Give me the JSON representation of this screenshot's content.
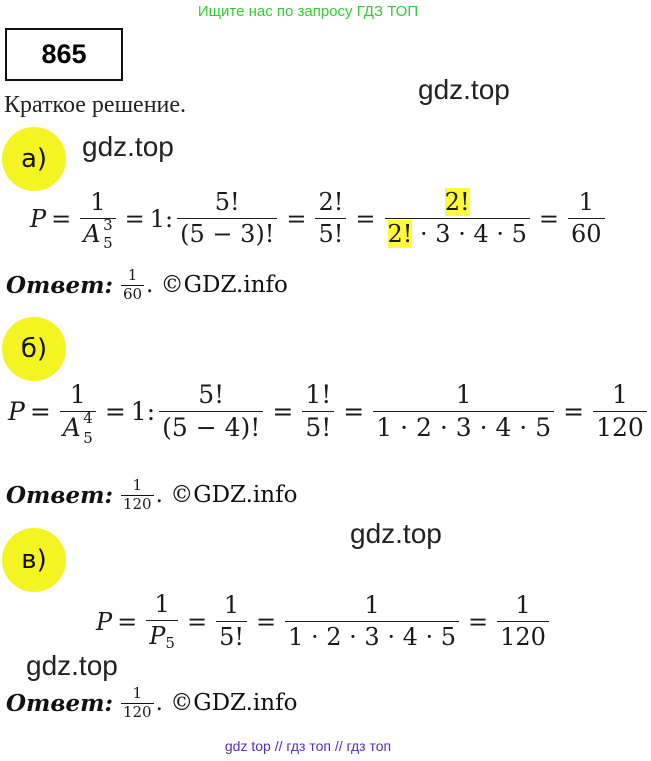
{
  "header": {
    "banner": "Ищите нас по запросу ГДЗ ТОП"
  },
  "task": {
    "number": "865"
  },
  "watermark": {
    "gdz_top": "gdz.top"
  },
  "section_title": "Краткое решение.",
  "parts": {
    "a": {
      "label": "а)",
      "P": "P",
      "eq": "=",
      "one": "1",
      "A": "A",
      "A_sup": "3",
      "A_sub": "5",
      "ratio_prefix": "1:",
      "f1_num": "5!",
      "f1_den": "(5 − 3)!",
      "f2_num": "2!",
      "f2_den": "5!",
      "f3_num": "2!",
      "f3_den_hl": "2!",
      "f3_den_rest": " · 3 · 4 · 5",
      "res_num": "1",
      "res_den": "60",
      "answer_num": "1",
      "answer_den": "60"
    },
    "b": {
      "label": "б)",
      "P": "P",
      "eq": "=",
      "one": "1",
      "A": "A",
      "A_sup": "4",
      "A_sub": "5",
      "ratio_prefix": "1:",
      "f1_num": "5!",
      "f1_den": "(5 − 4)!",
      "f2_num": "1!",
      "f2_den": "5!",
      "f3_num": "1",
      "f3_den": "1 · 2 · 3 · 4 · 5",
      "res_num": "1",
      "res_den": "120",
      "answer_num": "1",
      "answer_den": "120"
    },
    "c": {
      "label": "в)",
      "P": "P",
      "eq": "=",
      "one": "1",
      "P5": "P",
      "P5_sub": "5",
      "f2_num": "1",
      "f2_den": "5!",
      "f3_num": "1",
      "f3_den": "1 · 2 · 3 · 4 · 5",
      "res_num": "1",
      "res_den": "120",
      "answer_num": "1",
      "answer_den": "120"
    }
  },
  "answer": {
    "label": "Ответ:",
    "tail": ". ©GDZ.info"
  },
  "footer": {
    "text": "gdz top  //  гдз топ  //  гдз топ"
  },
  "colors": {
    "banner": "#33cc33",
    "badge": "#f4f423",
    "highlight": "#fffa3a",
    "footer": "#5a2bb0"
  }
}
